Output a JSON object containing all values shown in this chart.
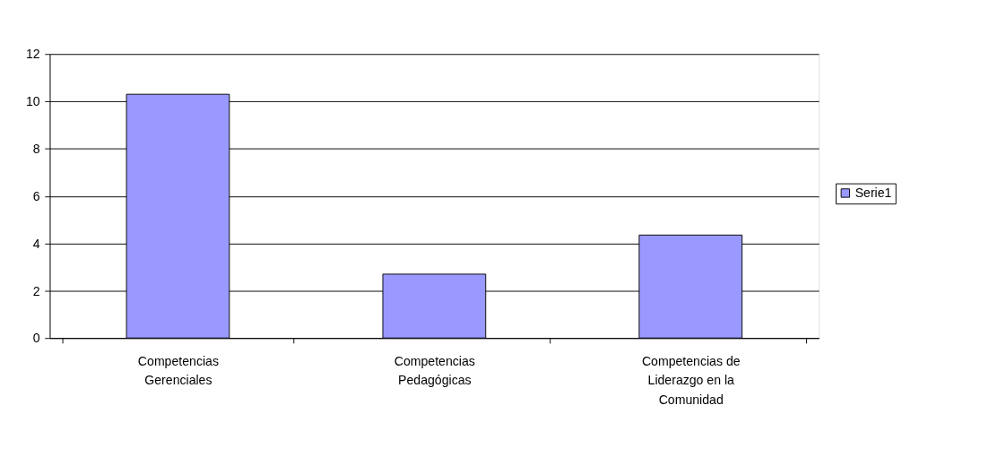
{
  "chart_data": {
    "type": "bar",
    "categories": [
      "Competencias Gerenciales",
      "Competencias Pedagógicas",
      "Competencias de Liderazgo en la Comunidad"
    ],
    "series": [
      {
        "name": "Serie1",
        "color": "#9999ff",
        "values": [
          10.3,
          2.7,
          4.35
        ]
      }
    ],
    "ylim": [
      0,
      12
    ],
    "yticks": [
      0,
      2,
      4,
      6,
      8,
      10,
      12
    ],
    "grid": "y",
    "legend": "right"
  }
}
